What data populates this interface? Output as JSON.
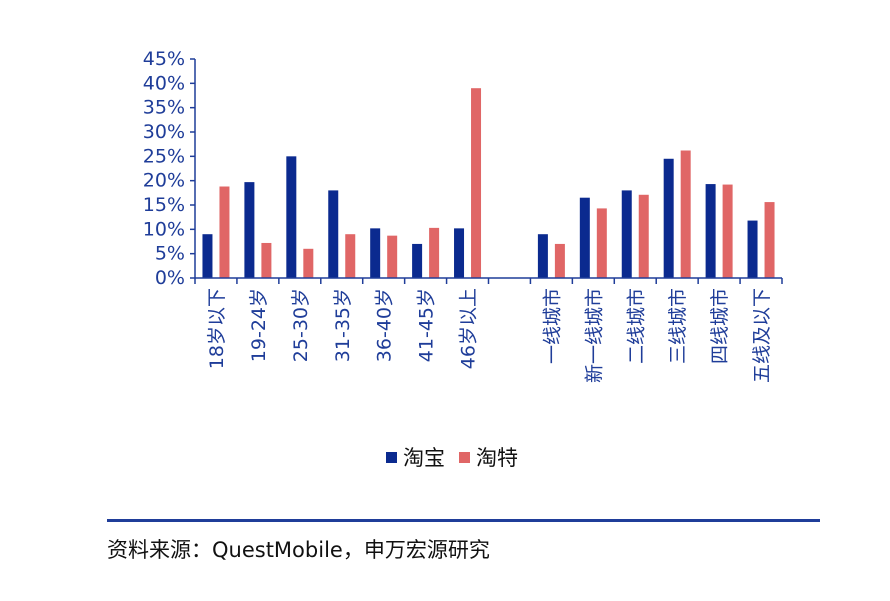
{
  "chart_data": {
    "type": "bar",
    "categories": [
      "18岁以下",
      "19-24岁",
      "25-30岁",
      "31-35岁",
      "36-40岁",
      "41-45岁",
      "46岁以上",
      "",
      "一线城市",
      "新一线城市",
      "二线城市",
      "三线城市",
      "四线城市",
      "五线及以下"
    ],
    "series": [
      {
        "name": "淘宝",
        "color": "#0b2a8f",
        "values": [
          9,
          19.7,
          25,
          18,
          10.2,
          7,
          10.2,
          null,
          9,
          16.5,
          18,
          24.5,
          19.3,
          11.8
        ]
      },
      {
        "name": "淘特",
        "color": "#e06666",
        "values": [
          18.8,
          7.2,
          6,
          9,
          8.7,
          10.3,
          39,
          null,
          7,
          14.3,
          17.1,
          26.2,
          19.2,
          15.6
        ]
      }
    ],
    "yticks": [
      "0%",
      "5%",
      "10%",
      "15%",
      "20%",
      "25%",
      "30%",
      "35%",
      "40%",
      "45%"
    ],
    "ylim": [
      0,
      45
    ],
    "grid": false,
    "legend_position": "bottom-center"
  },
  "source_text": "资料来源：QuestMobile，申万宏源研究"
}
